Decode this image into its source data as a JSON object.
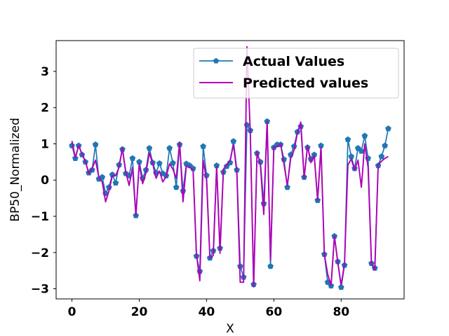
{
  "chart_data": {
    "type": "line",
    "xlabel": "X",
    "ylabel": "BP50_Normalized",
    "xlim": [
      -4.7,
      98.7
    ],
    "ylim": [
      -3.28,
      3.85
    ],
    "xticks": [
      0,
      20,
      40,
      60,
      80
    ],
    "yticks": [
      -3,
      -2,
      -1,
      0,
      1,
      2,
      3
    ],
    "grid": false,
    "legend_position": "top-right",
    "series": [
      {
        "name": "Actual Values",
        "color": "#1f77b4",
        "marker": "pentagon",
        "values": [
          0.95,
          0.6,
          0.95,
          0.7,
          0.5,
          0.2,
          0.28,
          0.98,
          0.03,
          0.08,
          -0.37,
          -0.2,
          0.15,
          -0.08,
          0.42,
          0.85,
          0.18,
          0.12,
          0.6,
          -0.98,
          0.5,
          0.05,
          0.28,
          0.88,
          0.48,
          0.2,
          0.46,
          0.18,
          0.12,
          0.88,
          0.47,
          -0.2,
          0.98,
          -0.3,
          0.45,
          0.4,
          0.32,
          -2.1,
          -2.52,
          0.93,
          0.13,
          -2.15,
          -1.95,
          0.4,
          -1.88,
          0.22,
          0.38,
          0.48,
          1.07,
          0.28,
          -2.38,
          -2.68,
          1.52,
          1.37,
          -2.88,
          0.74,
          0.5,
          -0.65,
          1.62,
          -2.38,
          0.9,
          0.98,
          0.98,
          0.57,
          -0.2,
          0.7,
          0.93,
          1.33,
          1.48,
          0.08,
          0.9,
          0.58,
          0.7,
          -0.56,
          0.95,
          -2.05,
          -2.82,
          -2.92,
          -1.55,
          -2.25,
          -2.96,
          -2.35,
          1.12,
          0.65,
          0.32,
          0.88,
          0.8,
          1.22,
          0.6,
          -2.3,
          -2.43,
          0.4,
          0.65,
          0.95,
          1.42
        ]
      },
      {
        "name": "Predicted values",
        "color": "#b000b8",
        "values": [
          1.08,
          0.62,
          0.95,
          0.72,
          0.52,
          0.18,
          0.32,
          0.55,
          0.08,
          -0.05,
          -0.6,
          -0.3,
          0.12,
          0.12,
          0.35,
          0.88,
          0.22,
          -0.15,
          0.35,
          -0.98,
          0.45,
          -0.1,
          0.2,
          0.75,
          0.45,
          0.05,
          0.25,
          -0.05,
          0.1,
          0.45,
          0.3,
          0.05,
          1.05,
          -0.6,
          0.4,
          0.35,
          0.28,
          -2.05,
          -2.78,
          0.55,
          0.0,
          -2.15,
          -2.08,
          0.38,
          -2.02,
          0.3,
          0.42,
          0.55,
          0.98,
          0.22,
          -2.82,
          -2.82,
          3.68,
          1.3,
          -2.95,
          0.78,
          0.42,
          -0.95,
          1.62,
          -2.2,
          0.92,
          0.92,
          1.0,
          0.45,
          -0.15,
          0.6,
          0.82,
          1.3,
          1.6,
          0.05,
          0.95,
          0.48,
          0.68,
          -0.55,
          0.9,
          -2.05,
          -2.6,
          -2.9,
          -1.55,
          -2.28,
          -2.9,
          -2.3,
          0.42,
          0.58,
          0.28,
          0.55,
          -0.2,
          1.0,
          0.35,
          -2.3,
          -2.48,
          0.42,
          0.52,
          0.6,
          0.65
        ]
      }
    ]
  }
}
